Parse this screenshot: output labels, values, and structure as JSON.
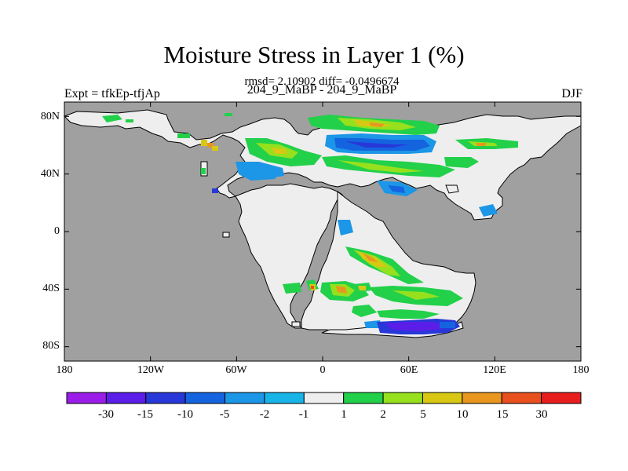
{
  "figure": {
    "title": "Moisture Stress in Layer 1 (%)",
    "stats": "rmsd= 2.10902 diff= -0.0496674",
    "expt": "Expt = tfkEp-tfjAp",
    "runs": "204_9_MaBP - 204_9_MaBP",
    "season": "DJF"
  },
  "map": {
    "projection": "cylindrical equidistant",
    "lon_range": [
      -180,
      180
    ],
    "lat_range": [
      -90,
      90
    ],
    "ocean_color": "#a0a0a0",
    "land_base_color": "#eeeeee",
    "lat_ticks": [
      {
        "value": 80,
        "label": "80N"
      },
      {
        "value": 40,
        "label": "40N"
      },
      {
        "value": 0,
        "label": "0"
      },
      {
        "value": -40,
        "label": "40S"
      },
      {
        "value": -80,
        "label": "80S"
      }
    ],
    "lon_ticks": [
      {
        "value": -180,
        "label": "180"
      },
      {
        "value": -120,
        "label": "120W"
      },
      {
        "value": -60,
        "label": "60W"
      },
      {
        "value": 0,
        "label": "0"
      },
      {
        "value": 60,
        "label": "60E"
      },
      {
        "value": 120,
        "label": "120E"
      },
      {
        "value": 180,
        "label": "180"
      }
    ]
  },
  "colorbar": {
    "labels": [
      "-30",
      "-15",
      "-10",
      "-5",
      "-2",
      "-1",
      "1",
      "2",
      "5",
      "10",
      "15",
      "30"
    ],
    "colors": [
      "#9b1ee8",
      "#5a1ee8",
      "#2838d8",
      "#1464e0",
      "#1c96e6",
      "#18b4e8",
      "#eeeeee",
      "#22d04a",
      "#96e01e",
      "#d8c814",
      "#e8961e",
      "#e8501e",
      "#e81e1e"
    ]
  }
}
